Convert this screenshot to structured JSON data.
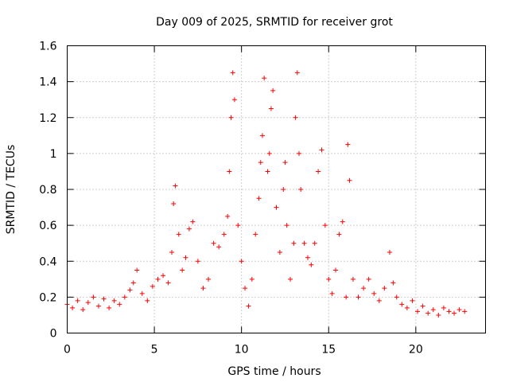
{
  "chart_data": {
    "type": "scatter",
    "title": "Day 009 of 2025, SRMTID for receiver grot",
    "xlabel": "GPS time / hours",
    "ylabel": "SRMTID / TECUs",
    "xlim": [
      0,
      24
    ],
    "ylim": [
      0,
      1.6
    ],
    "xticks": [
      0,
      5,
      10,
      15,
      20
    ],
    "xtick_labels": [
      "0",
      "5",
      "10",
      "15",
      "20"
    ],
    "yticks": [
      0,
      0.2,
      0.4,
      0.6,
      0.8,
      1,
      1.2,
      1.4,
      1.6
    ],
    "ytick_labels": [
      "0",
      "0.2",
      "0.4",
      "0.6",
      "0.8",
      "1",
      "1.2",
      "1.4",
      "1.6"
    ],
    "grid": true,
    "marker": "+",
    "color": "#ff0000",
    "series": [
      {
        "name": "SRMTID",
        "x": [
          0.0,
          0.3,
          0.6,
          0.9,
          1.2,
          1.5,
          1.8,
          2.1,
          2.4,
          2.7,
          3.0,
          3.3,
          3.6,
          3.8,
          4.0,
          4.3,
          4.6,
          4.9,
          5.2,
          5.5,
          5.8,
          6.0,
          6.1,
          6.2,
          6.4,
          6.6,
          6.8,
          7.0,
          7.2,
          7.5,
          7.8,
          8.1,
          8.4,
          8.7,
          9.0,
          9.2,
          9.3,
          9.4,
          9.5,
          9.6,
          9.8,
          10.0,
          10.2,
          10.4,
          10.6,
          10.8,
          11.0,
          11.1,
          11.2,
          11.3,
          11.5,
          11.6,
          11.7,
          11.8,
          12.0,
          12.2,
          12.4,
          12.5,
          12.6,
          12.8,
          13.0,
          13.1,
          13.2,
          13.3,
          13.4,
          13.6,
          13.8,
          14.0,
          14.2,
          14.4,
          14.6,
          14.8,
          15.0,
          15.2,
          15.4,
          15.6,
          15.8,
          16.0,
          16.1,
          16.2,
          16.4,
          16.7,
          17.0,
          17.3,
          17.6,
          17.9,
          18.2,
          18.5,
          18.7,
          18.9,
          19.2,
          19.5,
          19.8,
          20.1,
          20.4,
          20.7,
          21.0,
          21.3,
          21.6,
          21.9,
          22.2,
          22.5,
          22.8
        ],
        "y": [
          0.16,
          0.14,
          0.18,
          0.13,
          0.17,
          0.2,
          0.15,
          0.19,
          0.14,
          0.18,
          0.16,
          0.2,
          0.24,
          0.28,
          0.35,
          0.22,
          0.18,
          0.26,
          0.3,
          0.32,
          0.28,
          0.45,
          0.72,
          0.82,
          0.55,
          0.35,
          0.42,
          0.58,
          0.62,
          0.4,
          0.25,
          0.3,
          0.5,
          0.48,
          0.55,
          0.65,
          0.9,
          1.2,
          1.45,
          1.3,
          0.6,
          0.4,
          0.25,
          0.15,
          0.3,
          0.55,
          0.75,
          0.95,
          1.1,
          1.42,
          0.9,
          1.0,
          1.25,
          1.35,
          0.7,
          0.45,
          0.8,
          0.95,
          0.6,
          0.3,
          0.5,
          1.2,
          1.45,
          1.0,
          0.8,
          0.5,
          0.42,
          0.38,
          0.5,
          0.9,
          1.02,
          0.6,
          0.3,
          0.22,
          0.35,
          0.55,
          0.62,
          0.2,
          1.05,
          0.85,
          0.3,
          0.2,
          0.25,
          0.3,
          0.22,
          0.18,
          0.25,
          0.45,
          0.28,
          0.2,
          0.16,
          0.14,
          0.18,
          0.12,
          0.15,
          0.11,
          0.13,
          0.1,
          0.14,
          0.12,
          0.11,
          0.13,
          0.12
        ]
      }
    ]
  }
}
